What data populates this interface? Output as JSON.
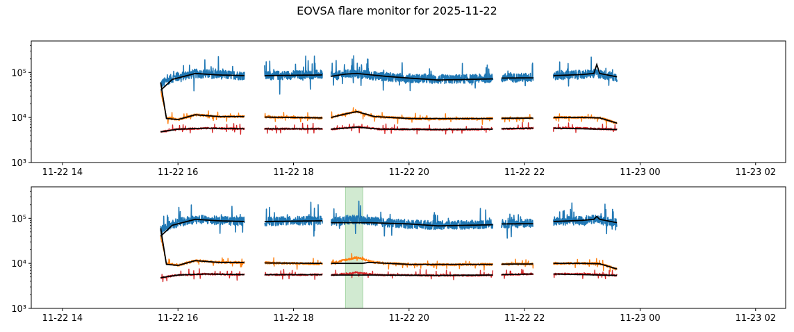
{
  "figure_title": "EOVSA flare monitor for 2025-11-22",
  "colors": {
    "series_high": "#1f77b4",
    "series_mid": "#ff7f0e",
    "series_low": "#d62728",
    "baseline": "#000000",
    "flare_window": "#2ca02c"
  },
  "chart_data": [
    {
      "type": "line",
      "panel": "top",
      "title": "",
      "xlabel": "",
      "ylabel": "",
      "yscale": "log",
      "x_unit": "hours since 2025-11-22 00:00",
      "xlim": [
        13.46,
        26.52
      ],
      "ylim": [
        1000,
        500000
      ],
      "x_ticks": [
        14,
        16,
        18,
        20,
        22,
        24,
        26
      ],
      "x_tick_labels": [
        "11-22 14",
        "11-22 16",
        "11-22 18",
        "11-22 20",
        "11-22 22",
        "11-23 00",
        "11-23 02"
      ],
      "y_ticks": [
        1000,
        10000,
        100000
      ],
      "y_tick_labels": [
        "10³",
        "10⁴",
        "10⁵"
      ],
      "segments": [
        [
          15.7,
          17.15
        ],
        [
          17.5,
          18.5
        ],
        [
          18.65,
          21.45
        ],
        [
          21.6,
          22.15
        ],
        [
          22.5,
          23.6
        ]
      ],
      "series": [
        {
          "name": "high",
          "color_key": "series_high",
          "x": [
            15.7,
            15.9,
            16.3,
            16.7,
            17.15,
            17.5,
            18.0,
            18.5,
            18.65,
            19.0,
            19.2,
            19.6,
            20.0,
            20.5,
            21.0,
            21.45,
            21.6,
            22.15,
            22.5,
            23.0,
            23.25,
            23.6
          ],
          "y": [
            55000,
            75000,
            95000,
            90000,
            85000,
            85000,
            88000,
            90000,
            82000,
            95000,
            90000,
            80000,
            75000,
            70000,
            72000,
            75000,
            75000,
            78000,
            85000,
            90000,
            95000,
            78000
          ]
        },
        {
          "name": "mid",
          "color_key": "series_mid",
          "x": [
            15.7,
            15.8,
            16.0,
            16.3,
            16.7,
            17.15,
            17.5,
            18.0,
            18.5,
            18.65,
            18.9,
            19.1,
            19.4,
            20.0,
            20.5,
            21.0,
            21.45,
            21.6,
            22.15,
            22.5,
            23.0,
            23.3,
            23.6
          ],
          "y": [
            40000,
            10000,
            9000,
            11500,
            10500,
            10500,
            10300,
            10000,
            9800,
            10000,
            12000,
            13500,
            10500,
            9500,
            9300,
            9400,
            9500,
            9600,
            9700,
            10000,
            10000,
            9800,
            7500
          ]
        },
        {
          "name": "low",
          "color_key": "series_low",
          "x": [
            15.7,
            16.0,
            16.5,
            17.15,
            17.5,
            18.0,
            18.5,
            18.65,
            19.1,
            19.5,
            20.0,
            20.5,
            21.0,
            21.45,
            21.6,
            22.15,
            22.5,
            23.0,
            23.6
          ],
          "y": [
            4800,
            5500,
            5800,
            5600,
            5600,
            5600,
            5600,
            5500,
            6200,
            5500,
            5500,
            5400,
            5400,
            5500,
            5600,
            5800,
            5800,
            5800,
            5400
          ]
        }
      ],
      "baselines": [
        {
          "name": "high-baseline",
          "x": [
            15.7,
            15.9,
            16.3,
            16.7,
            17.15,
            17.5,
            18.5,
            18.65,
            18.9,
            19.1,
            19.6,
            20.0,
            20.5,
            21.0,
            21.45,
            21.6,
            22.15,
            22.5,
            23.0,
            23.2,
            23.25,
            23.3,
            23.6
          ],
          "y": [
            40000,
            70000,
            95000,
            88000,
            85000,
            85000,
            88000,
            82000,
            92000,
            95000,
            82000,
            75000,
            68000,
            70000,
            72000,
            75000,
            76000,
            85000,
            90000,
            95000,
            150000,
            95000,
            80000
          ]
        },
        {
          "name": "mid-baseline",
          "x": [
            15.7,
            15.8,
            16.0,
            16.3,
            16.7,
            17.15,
            17.5,
            18.5,
            18.65,
            18.9,
            19.1,
            19.4,
            20.0,
            21.45,
            21.6,
            22.15,
            22.5,
            23.0,
            23.3,
            23.6
          ],
          "y": [
            60000,
            9500,
            9000,
            11500,
            10500,
            10500,
            10200,
            9800,
            10000,
            12000,
            13500,
            10500,
            9500,
            9500,
            9600,
            9700,
            10000,
            10000,
            9800,
            7500
          ]
        },
        {
          "name": "low-baseline",
          "x": [
            15.7,
            16.0,
            16.5,
            17.15,
            17.5,
            18.5,
            18.65,
            19.1,
            19.5,
            20.5,
            21.45,
            21.6,
            22.15,
            22.5,
            23.6
          ],
          "y": [
            4800,
            5500,
            5800,
            5600,
            5600,
            5600,
            5500,
            6100,
            5500,
            5400,
            5500,
            5600,
            5800,
            5800,
            5400
          ]
        }
      ],
      "highlight": null
    },
    {
      "type": "line",
      "panel": "bottom",
      "title": "",
      "xlabel": "",
      "ylabel": "",
      "yscale": "log",
      "x_unit": "hours since 2025-11-22 00:00",
      "xlim": [
        13.46,
        26.52
      ],
      "ylim": [
        1000,
        500000
      ],
      "x_ticks": [
        14,
        16,
        18,
        20,
        22,
        24,
        26
      ],
      "x_tick_labels": [
        "11-22 14",
        "11-22 16",
        "11-22 18",
        "11-22 20",
        "11-22 22",
        "11-23 00",
        "11-23 02"
      ],
      "y_ticks": [
        1000,
        10000,
        100000
      ],
      "y_tick_labels": [
        "10³",
        "10⁴",
        "10⁵"
      ],
      "segments": [
        [
          15.7,
          17.15
        ],
        [
          17.5,
          18.5
        ],
        [
          18.65,
          21.45
        ],
        [
          21.6,
          22.15
        ],
        [
          22.5,
          23.6
        ]
      ],
      "series": [
        {
          "name": "high",
          "color_key": "series_high",
          "x": [
            15.7,
            15.9,
            16.3,
            16.7,
            17.15,
            17.5,
            18.0,
            18.5,
            18.65,
            19.0,
            19.2,
            19.6,
            20.0,
            20.5,
            21.0,
            21.45,
            21.6,
            22.15,
            22.5,
            23.0,
            23.25,
            23.6
          ],
          "y": [
            55000,
            75000,
            95000,
            90000,
            85000,
            85000,
            88000,
            90000,
            82000,
            95000,
            90000,
            80000,
            75000,
            70000,
            72000,
            75000,
            75000,
            78000,
            85000,
            90000,
            95000,
            78000
          ]
        },
        {
          "name": "mid",
          "color_key": "series_mid",
          "x": [
            15.7,
            15.8,
            16.0,
            16.3,
            16.7,
            17.15,
            17.5,
            18.0,
            18.5,
            18.65,
            18.9,
            19.1,
            19.4,
            20.0,
            20.5,
            21.0,
            21.45,
            21.6,
            22.15,
            22.5,
            23.0,
            23.3,
            23.6
          ],
          "y": [
            40000,
            10000,
            9000,
            11500,
            10500,
            10500,
            10300,
            10000,
            9800,
            10000,
            12000,
            13500,
            10500,
            9500,
            9300,
            9400,
            9500,
            9600,
            9700,
            10000,
            10000,
            9800,
            7500
          ]
        },
        {
          "name": "low",
          "color_key": "series_low",
          "x": [
            15.7,
            16.0,
            16.5,
            17.15,
            17.5,
            18.0,
            18.5,
            18.65,
            19.1,
            19.5,
            20.0,
            20.5,
            21.0,
            21.45,
            21.6,
            22.15,
            22.5,
            23.0,
            23.6
          ],
          "y": [
            4800,
            5500,
            5800,
            5600,
            5600,
            5600,
            5600,
            5500,
            6200,
            5500,
            5500,
            5400,
            5400,
            5500,
            5600,
            5800,
            5800,
            5800,
            5400
          ]
        }
      ],
      "baselines": [
        {
          "name": "high-baseline",
          "x": [
            15.7,
            15.9,
            16.3,
            16.7,
            17.15,
            17.5,
            18.5,
            18.65,
            19.3,
            20.0,
            20.5,
            21.0,
            21.45,
            21.6,
            22.15,
            22.5,
            23.0,
            23.2,
            23.25,
            23.3,
            23.6
          ],
          "y": [
            40000,
            70000,
            95000,
            88000,
            85000,
            85000,
            88000,
            80000,
            80000,
            75000,
            68000,
            70000,
            72000,
            75000,
            76000,
            85000,
            90000,
            95000,
            110000,
            95000,
            80000
          ]
        },
        {
          "name": "mid-baseline",
          "x": [
            15.7,
            15.8,
            16.0,
            16.3,
            16.7,
            17.15,
            17.5,
            18.5,
            18.65,
            19.2,
            19.3,
            20.0,
            21.45,
            21.6,
            22.15,
            22.5,
            23.0,
            23.3,
            23.6
          ],
          "y": [
            60000,
            9500,
            9000,
            11500,
            10500,
            10500,
            10200,
            10000,
            10000,
            10000,
            10500,
            9500,
            9500,
            9600,
            9700,
            10000,
            10000,
            9800,
            7500
          ]
        },
        {
          "name": "low-baseline",
          "x": [
            15.7,
            16.0,
            16.5,
            17.15,
            17.5,
            18.5,
            18.65,
            19.5,
            20.5,
            21.45,
            21.6,
            22.15,
            22.5,
            23.6
          ],
          "y": [
            4800,
            5500,
            5800,
            5600,
            5600,
            5600,
            5500,
            5500,
            5400,
            5500,
            5600,
            5800,
            5800,
            5400
          ]
        }
      ],
      "highlight": {
        "x_start": 18.9,
        "x_end": 19.2
      }
    }
  ]
}
